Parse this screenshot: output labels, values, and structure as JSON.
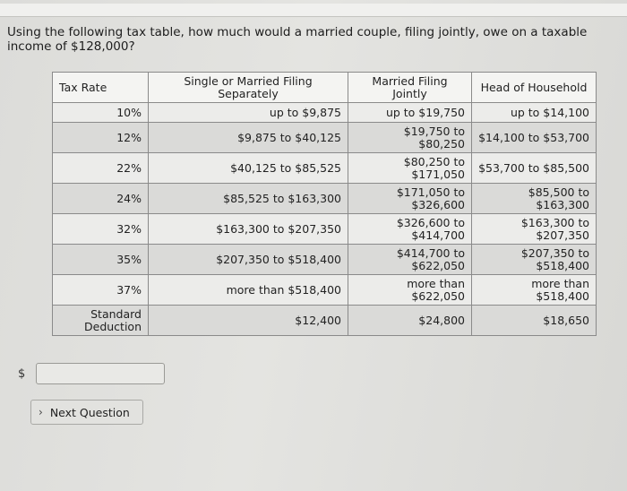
{
  "question": "Using the following tax table, how much would a married couple, filing jointly, owe on a taxable income of $128,000?",
  "table": {
    "headers": [
      "Tax Rate",
      "Single or Married Filing Separately",
      "Married Filing Jointly",
      "Head of Household"
    ],
    "rows": [
      [
        "10%",
        "up to $9,875",
        "up to $19,750",
        "up to $14,100"
      ],
      [
        "12%",
        "$9,875 to $40,125",
        "$19,750 to $80,250",
        "$14,100 to $53,700"
      ],
      [
        "22%",
        "$40,125 to $85,525",
        "$80,250 to $171,050",
        "$53,700 to $85,500"
      ],
      [
        "24%",
        "$85,525 to $163,300",
        "$171,050 to $326,600",
        "$85,500 to $163,300"
      ],
      [
        "32%",
        "$163,300 to $207,350",
        "$326,600 to $414,700",
        "$163,300 to $207,350"
      ],
      [
        "35%",
        "$207,350 to $518,400",
        "$414,700 to $622,050",
        "$207,350 to $518,400"
      ],
      [
        "37%",
        "more than $518,400",
        "more than $622,050",
        "more than $518,400"
      ],
      [
        "Standard Deduction",
        "$12,400",
        "$24,800",
        "$18,650"
      ]
    ]
  },
  "answer": {
    "currency_symbol": "$",
    "value": ""
  },
  "next_button": {
    "icon": "chevron-right-icon",
    "label": "Next Question"
  }
}
